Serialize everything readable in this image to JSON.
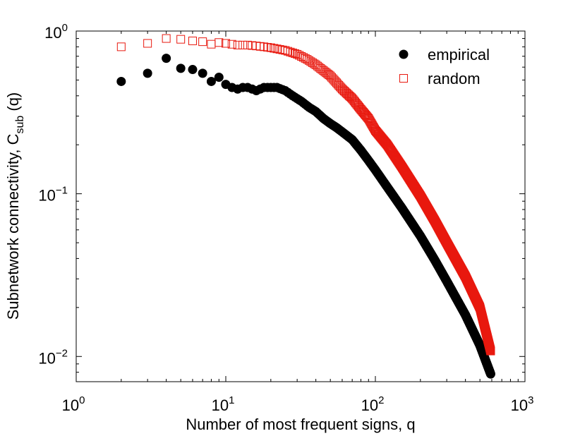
{
  "chart_data": {
    "type": "scatter",
    "title": "",
    "xlabel": "Number of most frequent signs, q",
    "ylabel": {
      "main": "Subnetwork connectivity, C",
      "sub": "sub",
      "suffix": " (q)"
    },
    "xscale": "log",
    "yscale": "log",
    "xlim": [
      1,
      1000
    ],
    "ylim": [
      0.007,
      1.0
    ],
    "x_ticks": [
      {
        "base": "10",
        "exp": "0",
        "value": 1
      },
      {
        "base": "10",
        "exp": "1",
        "value": 10
      },
      {
        "base": "10",
        "exp": "2",
        "value": 100
      },
      {
        "base": "10",
        "exp": "3",
        "value": 1000
      }
    ],
    "y_ticks": [
      {
        "base": "10",
        "exp": "−2",
        "value": 0.01
      },
      {
        "base": "10",
        "exp": "−1",
        "value": 0.1
      },
      {
        "base": "10",
        "exp": "0",
        "value": 1
      }
    ],
    "legend_position": "top-right",
    "series": [
      {
        "name": "empirical",
        "marker": "filled-circle",
        "color": "#000000",
        "points": [
          [
            2,
            0.49
          ],
          [
            3,
            0.55
          ],
          [
            4,
            0.68
          ],
          [
            5,
            0.59
          ],
          [
            6,
            0.58
          ],
          [
            7,
            0.55
          ],
          [
            8,
            0.49
          ],
          [
            9,
            0.52
          ],
          [
            10,
            0.47
          ],
          [
            11,
            0.45
          ],
          [
            12,
            0.44
          ],
          [
            13,
            0.45
          ],
          [
            14,
            0.45
          ],
          [
            15,
            0.44
          ],
          [
            16,
            0.43
          ],
          [
            18,
            0.45
          ],
          [
            20,
            0.45
          ],
          [
            22,
            0.45
          ],
          [
            25,
            0.43
          ],
          [
            28,
            0.4
          ],
          [
            32,
            0.37
          ],
          [
            36,
            0.34
          ],
          [
            40,
            0.32
          ],
          [
            45,
            0.29
          ],
          [
            50,
            0.27
          ],
          [
            55,
            0.255
          ],
          [
            60,
            0.24
          ],
          [
            70,
            0.215
          ],
          [
            80,
            0.185
          ],
          [
            90,
            0.16
          ],
          [
            100,
            0.14
          ],
          [
            120,
            0.11
          ],
          [
            150,
            0.082
          ],
          [
            200,
            0.055
          ],
          [
            250,
            0.039
          ],
          [
            300,
            0.029
          ],
          [
            400,
            0.018
          ],
          [
            500,
            0.0117
          ],
          [
            590,
            0.0078
          ]
        ]
      },
      {
        "name": "random",
        "marker": "open-square",
        "color": "#e8190f",
        "points": [
          [
            2,
            0.8
          ],
          [
            3,
            0.84
          ],
          [
            4,
            0.9
          ],
          [
            5,
            0.89
          ],
          [
            6,
            0.87
          ],
          [
            7,
            0.86
          ],
          [
            8,
            0.83
          ],
          [
            9,
            0.85
          ],
          [
            10,
            0.84
          ],
          [
            12,
            0.82
          ],
          [
            14,
            0.82
          ],
          [
            16,
            0.81
          ],
          [
            18,
            0.8
          ],
          [
            20,
            0.79
          ],
          [
            25,
            0.76
          ],
          [
            30,
            0.72
          ],
          [
            35,
            0.67
          ],
          [
            40,
            0.62
          ],
          [
            50,
            0.53
          ],
          [
            60,
            0.44
          ],
          [
            70,
            0.385
          ],
          [
            80,
            0.33
          ],
          [
            90,
            0.29
          ],
          [
            100,
            0.245
          ],
          [
            120,
            0.2
          ],
          [
            150,
            0.147
          ],
          [
            200,
            0.097
          ],
          [
            250,
            0.068
          ],
          [
            300,
            0.05
          ],
          [
            400,
            0.031
          ],
          [
            500,
            0.02
          ],
          [
            590,
            0.0108
          ]
        ]
      }
    ]
  }
}
